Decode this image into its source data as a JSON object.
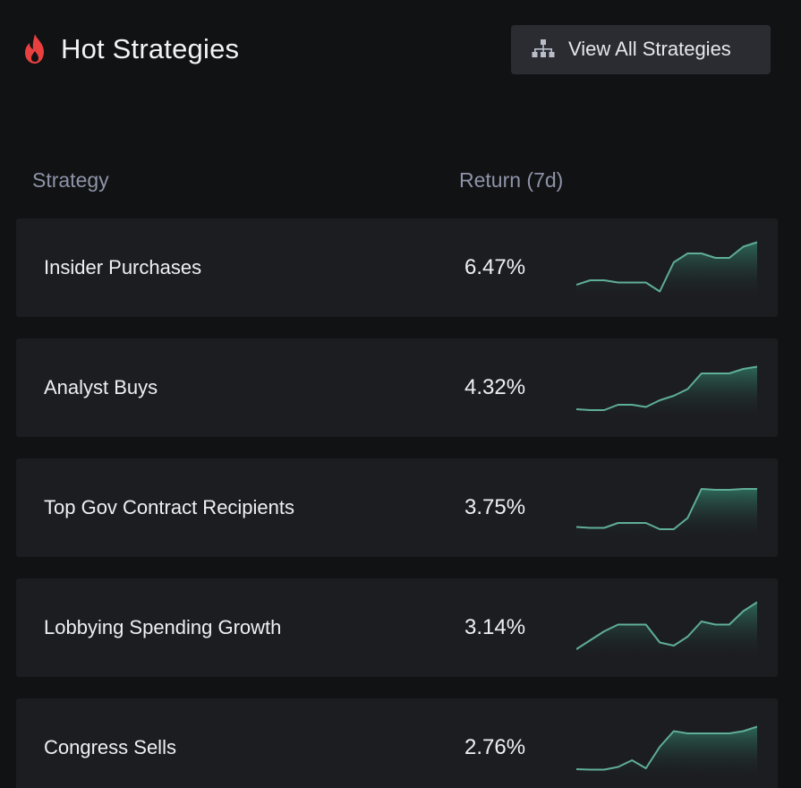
{
  "header": {
    "title": "Hot Strategies",
    "title_icon": "flame-icon",
    "view_all_label": "View All Strategies",
    "view_all_icon": "hierarchy-icon"
  },
  "table": {
    "columns": [
      "Strategy",
      "Return (7d)"
    ],
    "rows": [
      {
        "name": "Insider Purchases",
        "return": "6.47%",
        "trend": [
          2,
          3,
          3,
          2.5,
          2.5,
          2.5,
          0.5,
          7,
          9,
          9,
          8,
          8,
          10.5,
          11.5
        ]
      },
      {
        "name": "Analyst Buys",
        "return": "4.32%",
        "trend": [
          1,
          0.8,
          0.8,
          2,
          2,
          1.5,
          3,
          4,
          5.5,
          9,
          9,
          9,
          10,
          10.5
        ]
      },
      {
        "name": "Top Gov Contract Recipients",
        "return": "3.75%",
        "trend": [
          1.5,
          1.3,
          1.3,
          2.4,
          2.4,
          2.4,
          1,
          1,
          3.5,
          10,
          9.8,
          9.8,
          10,
          10
        ]
      },
      {
        "name": "Lobbying Spending Growth",
        "return": "3.14%",
        "trend": [
          1,
          3,
          5,
          6.5,
          6.5,
          6.5,
          2.5,
          1.8,
          3.8,
          7.2,
          6.5,
          6.5,
          9.5,
          11.5
        ]
      },
      {
        "name": "Congress Sells",
        "return": "2.76%",
        "trend": [
          1,
          0.9,
          0.9,
          1.5,
          3,
          1.2,
          6,
          9.5,
          9,
          9,
          9,
          9,
          9.5,
          10.5
        ]
      }
    ]
  },
  "colors": {
    "accent_flame": "#e8403f",
    "sparkline_stroke": "#5fae97",
    "sparkline_fill": "#2e6b5a",
    "row_background": "#1c1d21",
    "page_background": "#111214"
  }
}
